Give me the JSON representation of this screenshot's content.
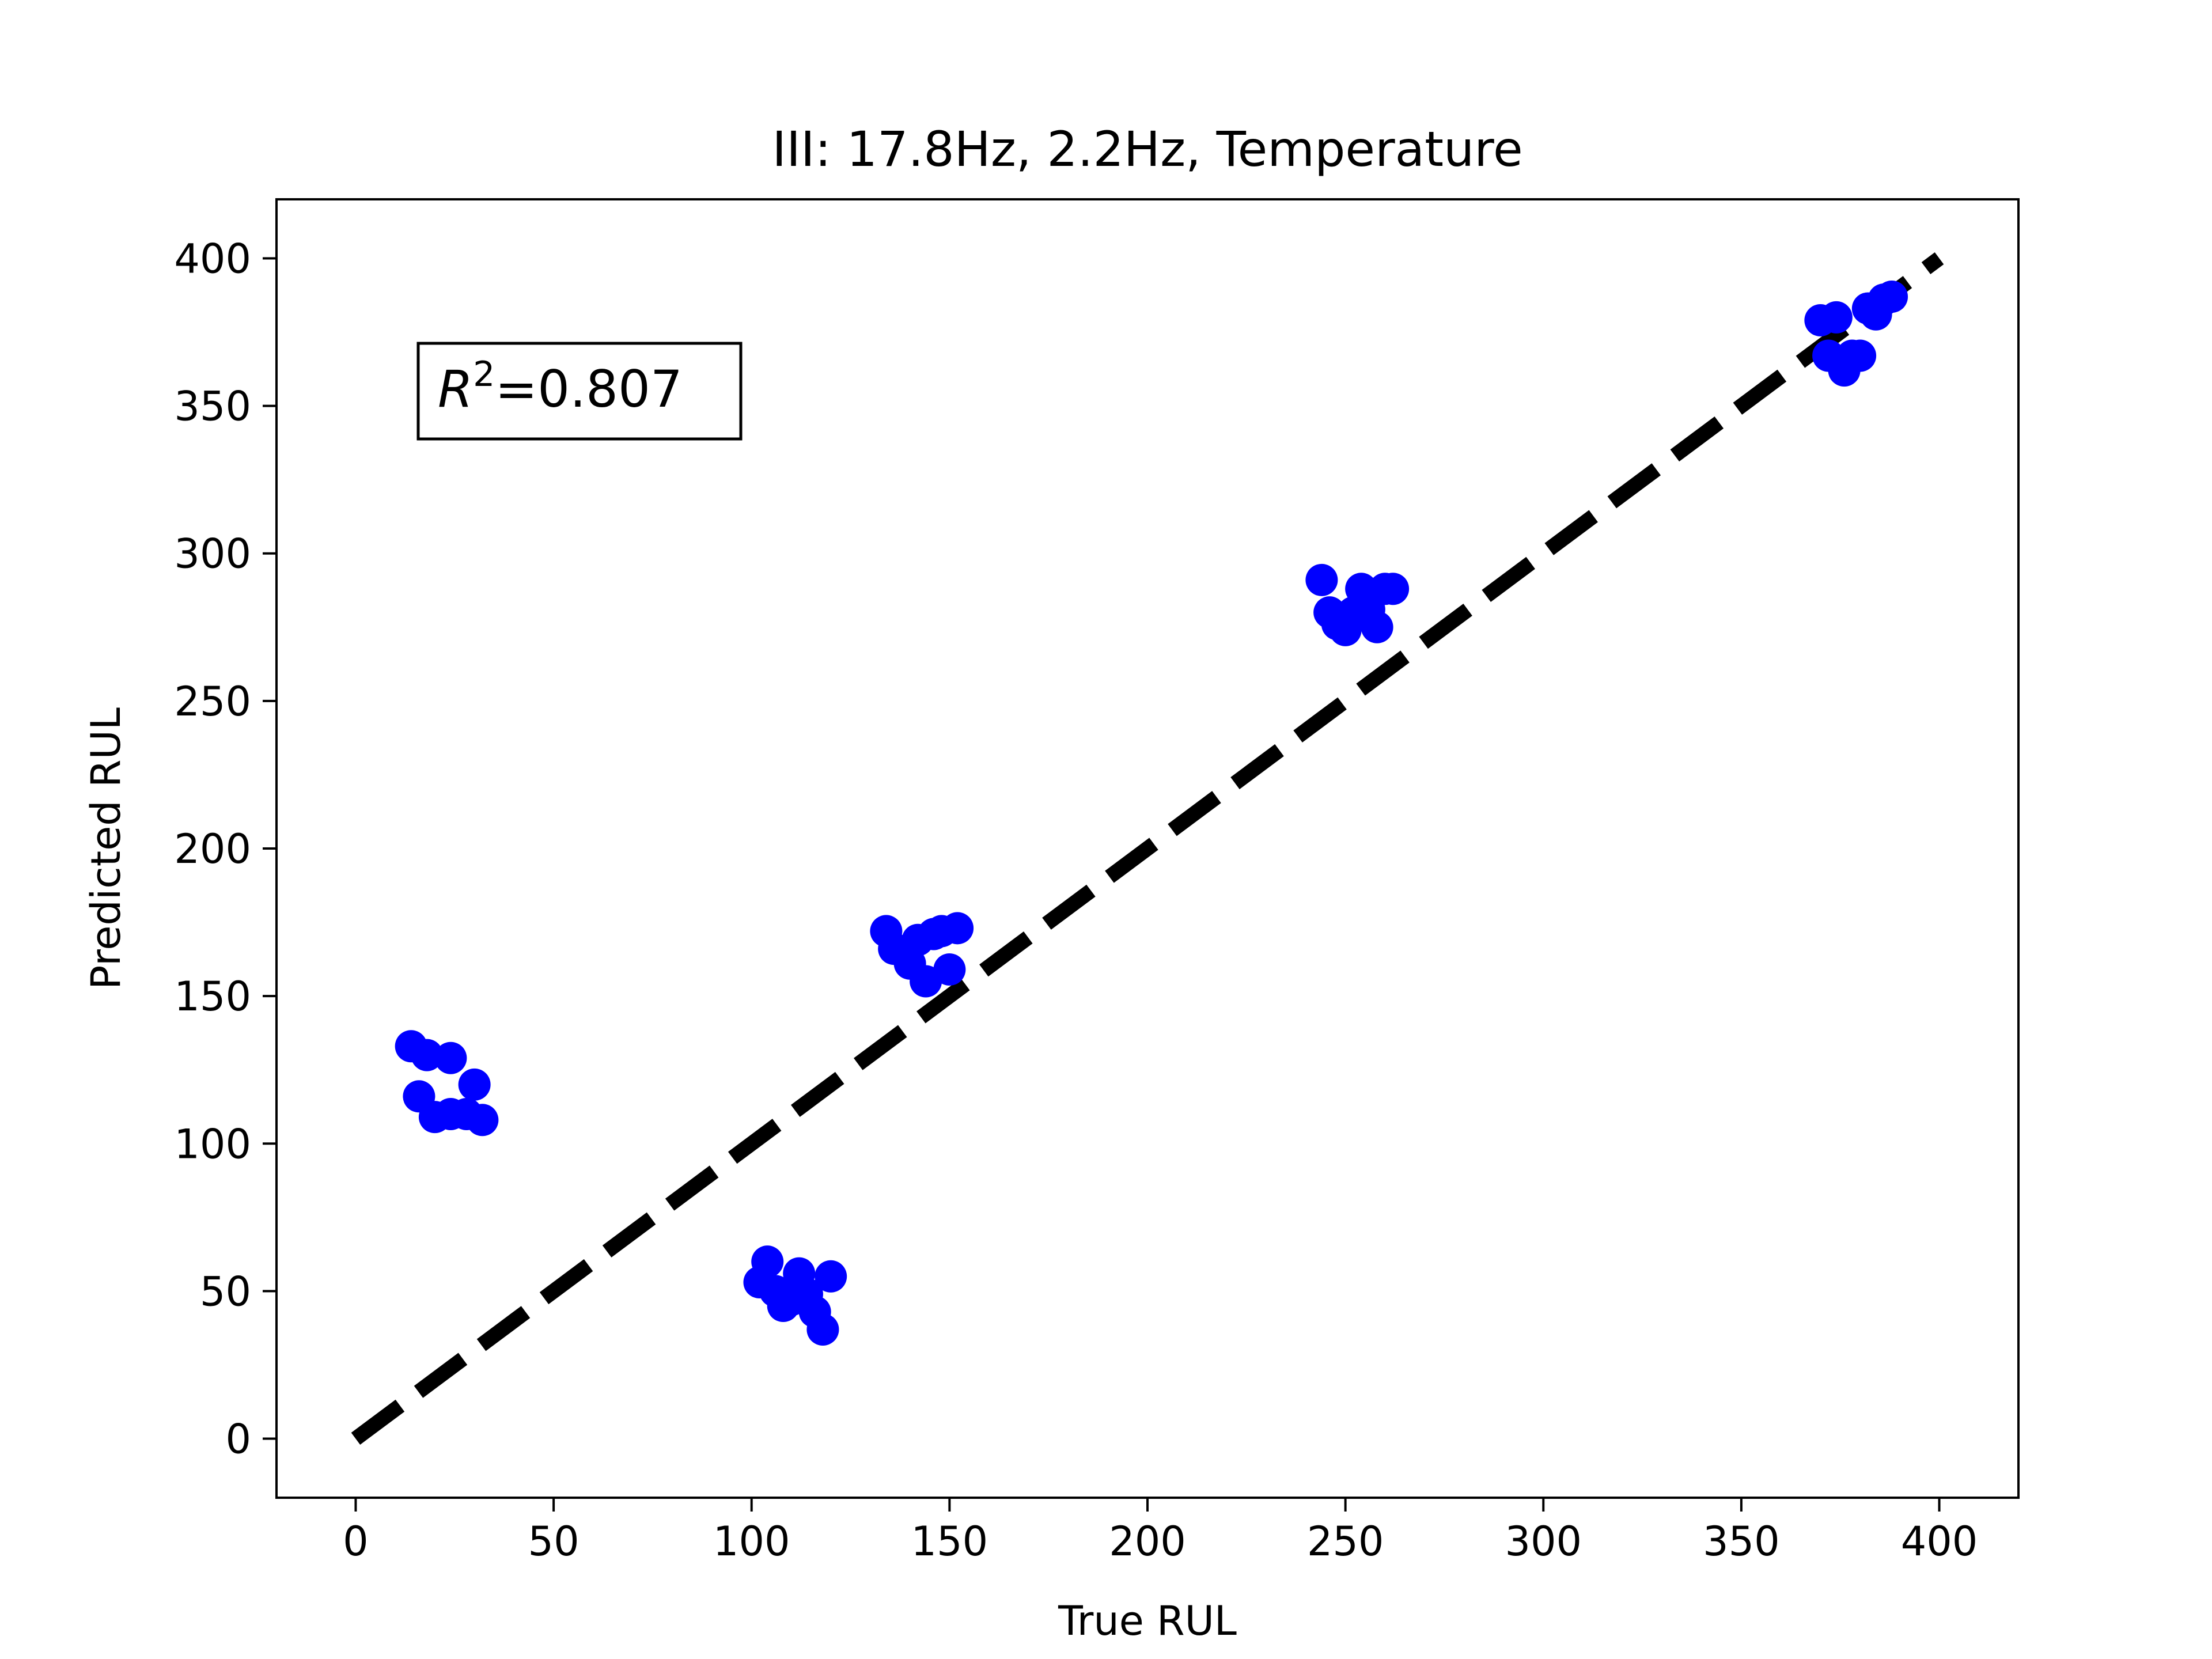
{
  "chart_data": {
    "type": "scatter",
    "title": "III: 17.8Hz, 2.2Hz, Temperature",
    "xlabel": "True RUL",
    "ylabel": "Predicted RUL",
    "xlim": [
      -20,
      420
    ],
    "ylim": [
      -20,
      420
    ],
    "xticks": [
      0,
      50,
      100,
      150,
      200,
      250,
      300,
      350,
      400
    ],
    "yticks": [
      0,
      50,
      100,
      150,
      200,
      250,
      300,
      350,
      400
    ],
    "grid": false,
    "annotation": {
      "label": "R",
      "superscript": "2",
      "value": "=0.807"
    },
    "reference_line": {
      "style": "dashed",
      "color": "#000000",
      "from": [
        0,
        0
      ],
      "to": [
        400,
        400
      ]
    },
    "point_color": "#0000ff",
    "points": [
      {
        "x": 14,
        "y": 133
      },
      {
        "x": 18,
        "y": 130
      },
      {
        "x": 24,
        "y": 129
      },
      {
        "x": 16,
        "y": 116
      },
      {
        "x": 20,
        "y": 109
      },
      {
        "x": 24,
        "y": 110
      },
      {
        "x": 28,
        "y": 110
      },
      {
        "x": 30,
        "y": 120
      },
      {
        "x": 32,
        "y": 108
      },
      {
        "x": 102,
        "y": 53
      },
      {
        "x": 104,
        "y": 60
      },
      {
        "x": 106,
        "y": 50
      },
      {
        "x": 108,
        "y": 45
      },
      {
        "x": 110,
        "y": 47
      },
      {
        "x": 112,
        "y": 56
      },
      {
        "x": 114,
        "y": 49
      },
      {
        "x": 116,
        "y": 43
      },
      {
        "x": 118,
        "y": 37
      },
      {
        "x": 120,
        "y": 55
      },
      {
        "x": 134,
        "y": 172
      },
      {
        "x": 136,
        "y": 166
      },
      {
        "x": 140,
        "y": 161
      },
      {
        "x": 142,
        "y": 169
      },
      {
        "x": 144,
        "y": 155
      },
      {
        "x": 146,
        "y": 171
      },
      {
        "x": 148,
        "y": 172
      },
      {
        "x": 150,
        "y": 159
      },
      {
        "x": 152,
        "y": 173
      },
      {
        "x": 244,
        "y": 291
      },
      {
        "x": 246,
        "y": 280
      },
      {
        "x": 248,
        "y": 276
      },
      {
        "x": 250,
        "y": 274
      },
      {
        "x": 252,
        "y": 280
      },
      {
        "x": 254,
        "y": 288
      },
      {
        "x": 256,
        "y": 281
      },
      {
        "x": 258,
        "y": 275
      },
      {
        "x": 260,
        "y": 288
      },
      {
        "x": 262,
        "y": 288
      },
      {
        "x": 370,
        "y": 379
      },
      {
        "x": 372,
        "y": 367
      },
      {
        "x": 374,
        "y": 380
      },
      {
        "x": 376,
        "y": 362
      },
      {
        "x": 378,
        "y": 367
      },
      {
        "x": 380,
        "y": 367
      },
      {
        "x": 382,
        "y": 383
      },
      {
        "x": 384,
        "y": 381
      },
      {
        "x": 386,
        "y": 386
      },
      {
        "x": 388,
        "y": 387
      }
    ]
  }
}
